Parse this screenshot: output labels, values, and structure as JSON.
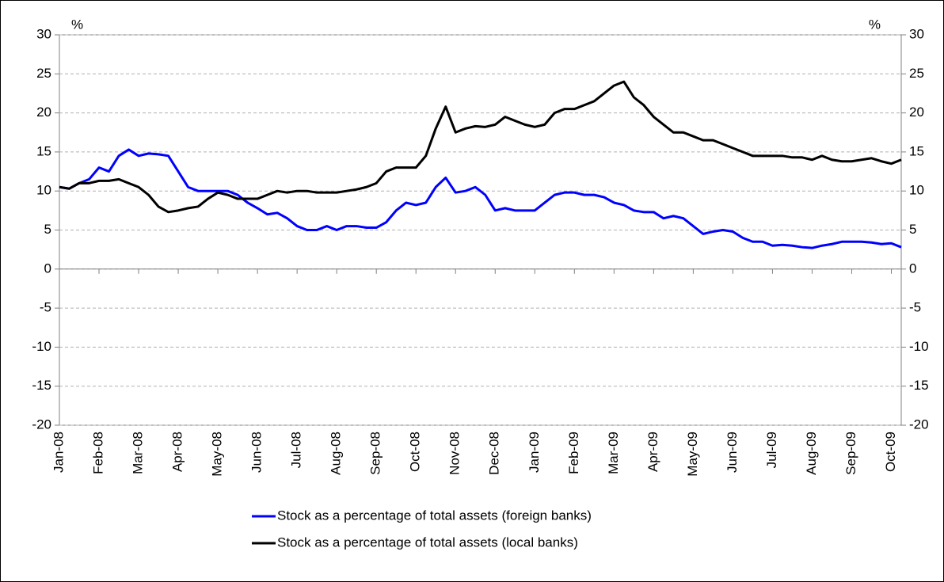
{
  "chart_data": {
    "type": "line",
    "y_label": "%",
    "y2_label": "%",
    "categories": [
      "Jan-08",
      null,
      null,
      null,
      "Feb-08",
      null,
      null,
      null,
      "Mar-08",
      null,
      null,
      null,
      "Apr-08",
      null,
      null,
      null,
      "May-08",
      null,
      null,
      null,
      "Jun-08",
      null,
      null,
      null,
      "Jul-08",
      null,
      null,
      null,
      "Aug-08",
      null,
      null,
      null,
      "Sep-08",
      null,
      null,
      null,
      "Oct-08",
      null,
      null,
      null,
      "Nov-08",
      null,
      null,
      null,
      "Dec-08",
      null,
      null,
      null,
      "Jan-09",
      null,
      null,
      null,
      "Feb-09",
      null,
      null,
      null,
      "Mar-09",
      null,
      null,
      null,
      "Apr-09",
      null,
      null,
      null,
      "May-09",
      null,
      null,
      null,
      "Jun-09",
      null,
      null,
      null,
      "Jul-09",
      null,
      null,
      null,
      "Aug-09",
      null,
      null,
      null,
      "Sep-09",
      null,
      null,
      null,
      "Oct-09",
      null
    ],
    "series": [
      {
        "name": "Stock as a percentage of total assets (foreign banks)",
        "color": "#0000ff",
        "values": [
          10.5,
          10.3,
          11,
          11.5,
          13,
          12.5,
          14.5,
          15.3,
          14.5,
          14.8,
          14.7,
          14.5,
          12.5,
          10.5,
          10,
          10,
          10,
          10,
          9.5,
          8.5,
          7.8,
          7,
          7.2,
          6.5,
          5.5,
          5,
          5,
          5.5,
          5,
          5.5,
          5.5,
          5.3,
          5.3,
          6,
          7.5,
          8.5,
          8.2,
          8.5,
          10.5,
          11.7,
          9.8,
          10,
          10.5,
          9.5,
          7.5,
          7.8,
          7.5,
          7.5,
          7.5,
          8.5,
          9.5,
          9.8,
          9.8,
          9.5,
          9.5,
          9.2,
          8.5,
          8.2,
          7.5,
          7.3,
          7.3,
          6.5,
          6.8,
          6.5,
          5.5,
          4.5,
          4.8,
          5,
          4.8,
          4,
          3.5,
          3.5,
          3,
          3.1,
          3,
          2.8,
          2.7,
          3,
          3.2,
          3.5,
          3.5,
          3.5,
          3.4,
          3.2,
          3.3,
          2.8
        ]
      },
      {
        "name": "Stock as a percentage of total assets (local banks)",
        "color": "#000000",
        "values": [
          10.5,
          10.3,
          11,
          11,
          11.3,
          11.3,
          11.5,
          11,
          10.5,
          9.5,
          8,
          7.3,
          7.5,
          7.8,
          8,
          9,
          9.8,
          9.5,
          9,
          9,
          9,
          9.5,
          10,
          9.8,
          10,
          10,
          9.8,
          9.8,
          9.8,
          10,
          10.2,
          10.5,
          11,
          12.5,
          13,
          13,
          13,
          14.5,
          18,
          20.8,
          17.5,
          18,
          18.3,
          18.2,
          18.5,
          19.5,
          19,
          18.5,
          18.2,
          18.5,
          20,
          20.5,
          20.5,
          21,
          21.5,
          22.5,
          23.5,
          24,
          22,
          21,
          19.5,
          18.5,
          17.5,
          17.5,
          17,
          16.5,
          16.5,
          16,
          15.5,
          15,
          14.5,
          14.5,
          14.5,
          14.5,
          14.3,
          14.3,
          14,
          14.5,
          14,
          13.8,
          13.8,
          14,
          14.2,
          13.8,
          13.5,
          14
        ]
      }
    ],
    "ylim": [
      -20,
      30
    ],
    "yticks": [
      -20,
      -15,
      -10,
      -5,
      0,
      5,
      10,
      15,
      20,
      25,
      30
    ],
    "y2lim": [
      -20,
      30
    ],
    "y2ticks": [
      -20,
      -15,
      -10,
      -5,
      0,
      5,
      10,
      15,
      20,
      25,
      30
    ],
    "grid": true
  }
}
